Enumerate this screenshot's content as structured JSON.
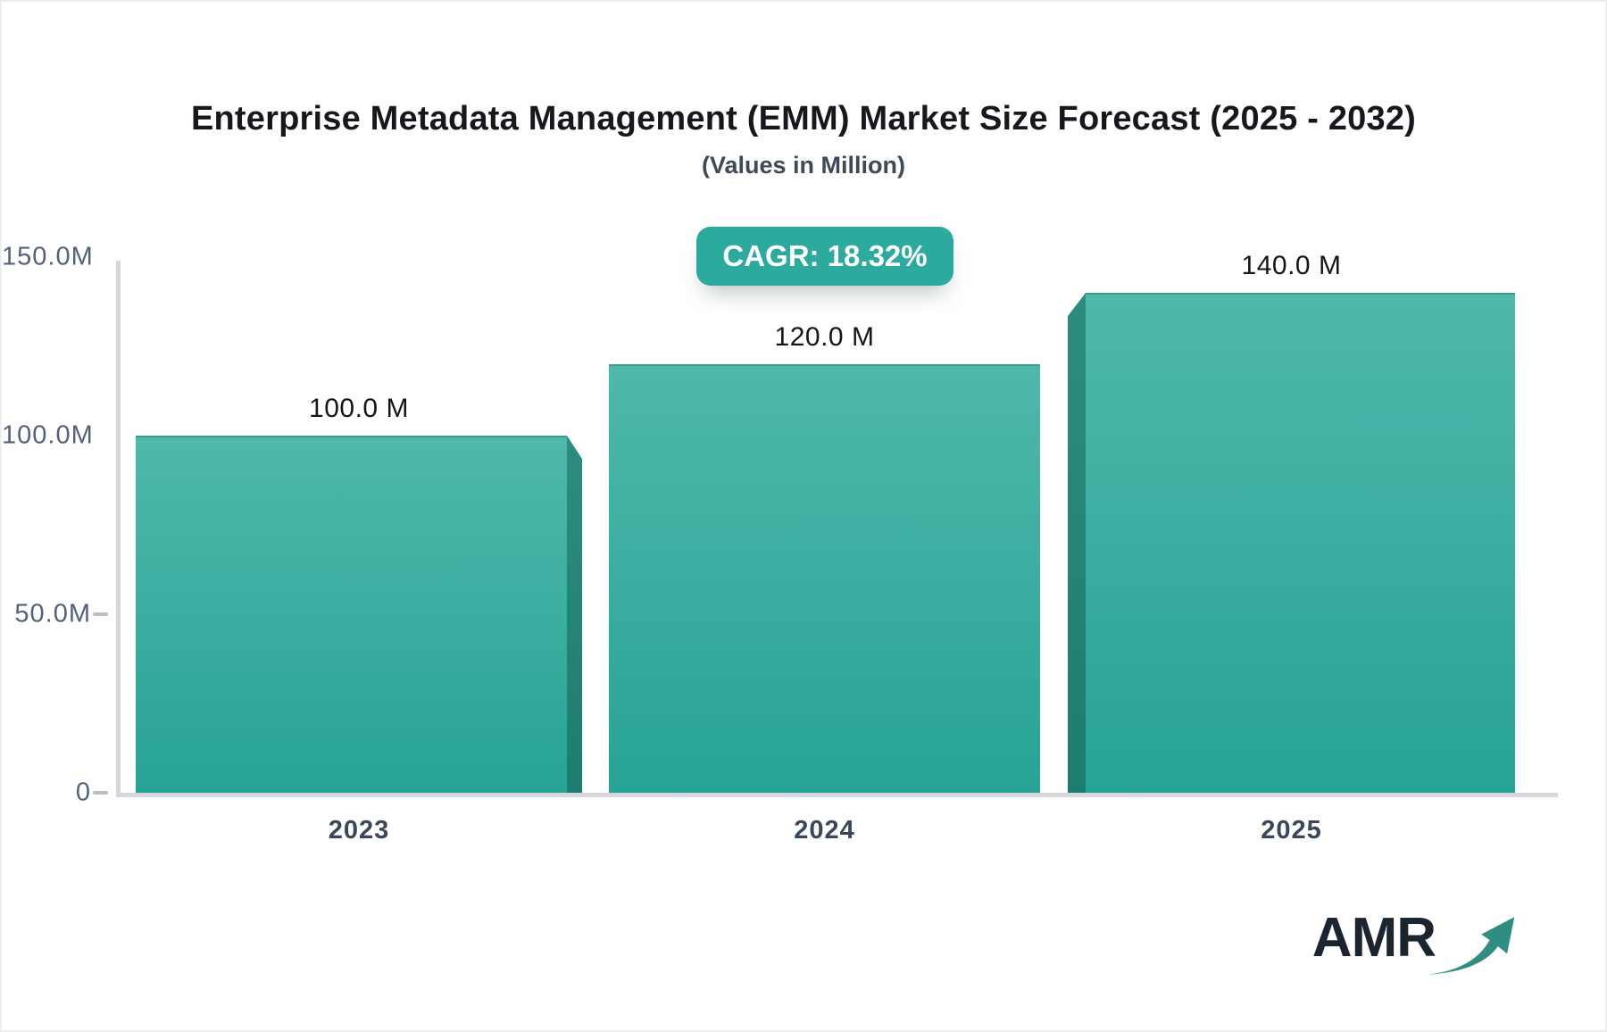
{
  "title": "Enterprise Metadata Management (EMM) Market Size Forecast (2025 - 2032)",
  "subtitle": "(Values in Million)",
  "cagr_label": "CAGR: 18.32%",
  "logo_text": "AMR",
  "colors": {
    "bar_gradient_top": "#4fb8ab",
    "bar_gradient_bottom": "#27a396",
    "bar_side_face": "#1f8276",
    "badge_background": "#2baa9d",
    "axis_line": "#d5d7dc",
    "title_text": "#16181d",
    "subtitle_text": "#3f4a59",
    "tick_label": "#55617a",
    "category_label": "#3a465a",
    "value_label": "#141619",
    "logo_text_color": "#1a2530",
    "logo_arrow": "#2f8d82"
  },
  "chart_data": {
    "type": "bar",
    "title": "Enterprise Metadata Management (EMM) Market Size Forecast (2025 - 2032)",
    "subtitle": "(Values in Million)",
    "unit": "Million",
    "categories": [
      "2023",
      "2024",
      "2025"
    ],
    "values": [
      100.0,
      120.0,
      140.0
    ],
    "value_labels": [
      "100.0 M",
      "120.0 M",
      "140.0 M"
    ],
    "cagr_percent": 18.32,
    "y_axis": {
      "range": [
        0,
        150
      ],
      "ticks": [
        {
          "label": "150.0M",
          "value": 150,
          "dash": false
        },
        {
          "label": "100.0M",
          "value": 100,
          "dash": false
        },
        {
          "label": "50.0M",
          "value": 50,
          "dash": true
        },
        {
          "label": "0",
          "value": 0,
          "dash": true
        }
      ]
    },
    "legend": false,
    "grid": false
  }
}
